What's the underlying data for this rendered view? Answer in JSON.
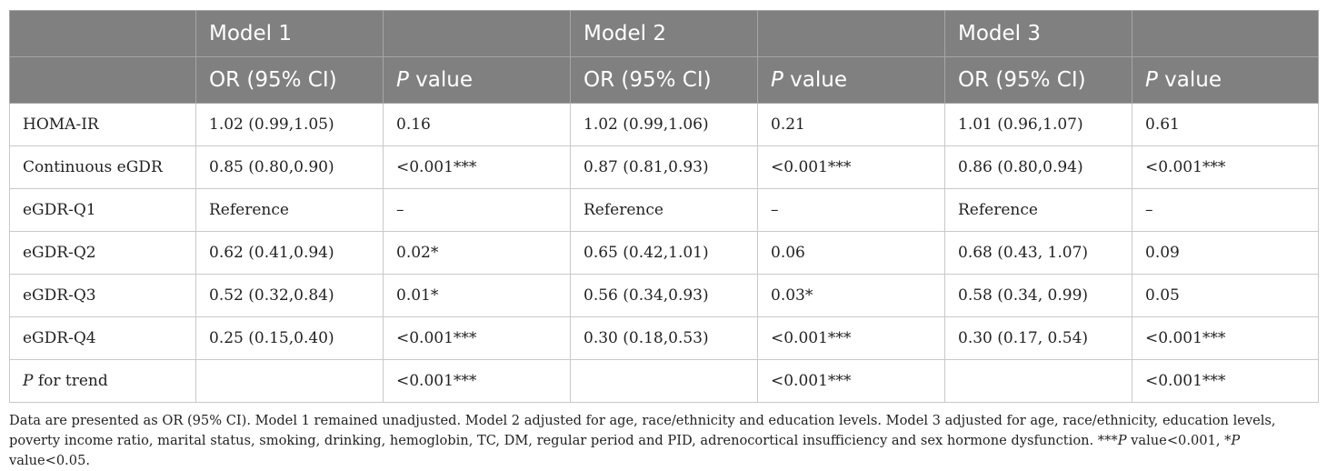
{
  "header": {
    "models": [
      "Model 1",
      "Model 2",
      "Model 3"
    ],
    "or_label": "OR (95% CI)",
    "p_italic": "P",
    "p_suffix": " value"
  },
  "rows": [
    {
      "label": "HOMA-IR",
      "cells": [
        "1.02 (0.99,1.05)",
        "0.16",
        "1.02 (0.99,1.06)",
        "0.21",
        "1.01 (0.96,1.07)",
        "0.61"
      ]
    },
    {
      "label": "Continuous eGDR",
      "cells": [
        "0.85 (0.80,0.90)",
        "<0.001***",
        "0.87 (0.81,0.93)",
        "<0.001***",
        "0.86 (0.80,0.94)",
        "<0.001***"
      ]
    },
    {
      "label": "eGDR-Q1",
      "cells": [
        "Reference",
        "–",
        "Reference",
        "–",
        "Reference",
        "–"
      ]
    },
    {
      "label": "eGDR-Q2",
      "cells": [
        "0.62 (0.41,0.94)",
        "0.02*",
        "0.65 (0.42,1.01)",
        "0.06",
        "0.68 (0.43, 1.07)",
        "0.09"
      ]
    },
    {
      "label": "eGDR-Q3",
      "cells": [
        "0.52 (0.32,0.84)",
        "0.01*",
        "0.56 (0.34,0.93)",
        "0.03*",
        "0.58 (0.34, 0.99)",
        "0.05"
      ]
    },
    {
      "label": "eGDR-Q4",
      "cells": [
        "0.25 (0.15,0.40)",
        "<0.001***",
        "0.30 (0.18,0.53)",
        "<0.001***",
        "0.30 (0.17, 0.54)",
        "<0.001***"
      ]
    }
  ],
  "trend_row": {
    "label_italic": "P",
    "label_rest": " for trend",
    "cells": [
      "",
      "<0.001***",
      "",
      "<0.001***",
      "",
      "<0.001***"
    ]
  },
  "footnote": {
    "text_main": "Data are presented as OR (95% CI). Model 1 remained unadjusted. Model 2 adjusted for age, race/ethnicity and education levels. Model 3 adjusted for age, race/ethnicity, education levels, poverty income ratio, marital status, smoking, drinking, hemoglobin, TC, DM, regular period and PID, adrenocortical insufficiency and sex hormone dysfunction. ***",
    "p1_italic": "P",
    "p1_rest": " value<0.001, *",
    "p2_italic": "P",
    "p2_rest": " value<0.05."
  }
}
